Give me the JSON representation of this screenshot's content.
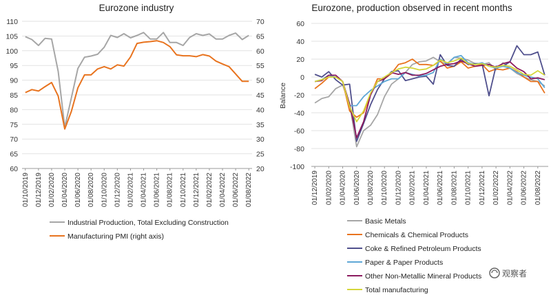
{
  "watermark": "观察者",
  "chart_data": [
    {
      "type": "line",
      "title": "Eurozone industry",
      "xlabel": "",
      "ylabel": "",
      "y_left": {
        "min": 60,
        "max": 110,
        "step": 5
      },
      "y_right": {
        "min": 20,
        "max": 70,
        "step": 5
      },
      "x_tick_labels": [
        "01/10/2019",
        "01/12/2019",
        "01/02/2020",
        "01/04/2020",
        "01/06/2020",
        "01/08/2020",
        "01/10/2020",
        "01/12/2020",
        "01/02/2021",
        "01/04/2021",
        "01/06/2021",
        "01/08/2021",
        "01/10/2021",
        "01/12/2021",
        "01/02/2022",
        "01/04/2022",
        "01/06/2022",
        "01/08/2022"
      ],
      "n_points": 35,
      "series": [
        {
          "name": "Industrial Production, Total Excluding Construction",
          "color": "#a6a6a6",
          "axis": "left",
          "values": [
            104.8,
            103.8,
            101.8,
            104.2,
            104.0,
            93.0,
            74.0,
            84.0,
            94.0,
            97.8,
            98.2,
            98.8,
            101.2,
            105.2,
            104.5,
            105.8,
            104.4,
            105.2,
            106.2,
            104.0,
            104.0,
            106.2,
            102.8,
            102.8,
            101.8,
            104.5,
            105.8,
            105.2,
            105.7,
            104.0,
            104.0,
            105.2,
            106.0,
            103.8,
            105.2
          ]
        },
        {
          "name": "Manufacturing PMI (right axis)",
          "color": "#e8731e",
          "axis": "right",
          "values": [
            45.8,
            46.8,
            46.3,
            47.8,
            49.2,
            44.6,
            33.4,
            39.4,
            47.4,
            51.8,
            51.8,
            53.8,
            54.6,
            53.8,
            55.2,
            54.8,
            57.9,
            62.5,
            62.9,
            63.1,
            63.4,
            62.8,
            61.4,
            58.6,
            58.3,
            58.3,
            58.0,
            58.7,
            58.2,
            56.5,
            55.5,
            54.6,
            52.1,
            49.6,
            49.6
          ]
        }
      ],
      "legend_position": "bottom"
    },
    {
      "type": "line",
      "title": "Eurozone, production observed in recent months",
      "xlabel": "",
      "ylabel": "Balance",
      "ylim": [
        -100,
        60
      ],
      "y_step": 20,
      "x_tick_labels": [
        "01/12/2019",
        "01/02/2020",
        "01/04/2020",
        "01/06/2020",
        "01/08/2020",
        "01/10/2020",
        "01/12/2020",
        "01/02/2021",
        "01/04/2021",
        "01/06/2021",
        "01/08/2021",
        "01/10/2021",
        "01/12/2021",
        "01/02/2022",
        "01/04/2022",
        "01/06/2022",
        "01/08/2022"
      ],
      "n_points": 34,
      "series": [
        {
          "name": "Basic Metals",
          "color": "#a6a6a6",
          "values": [
            -29,
            -24,
            -22,
            -13,
            -9,
            -30,
            -78,
            -60,
            -54,
            -42,
            -22,
            -8,
            -2,
            5,
            14,
            17,
            18,
            22,
            17,
            14,
            22,
            21,
            19,
            15,
            14,
            16,
            8,
            16,
            10,
            4,
            0,
            -3,
            -5,
            -10
          ]
        },
        {
          "name": "Chemicals & Chemical Products",
          "color": "#e8731e",
          "values": [
            -13,
            -7,
            0,
            0,
            -5,
            -38,
            -45,
            -40,
            -20,
            -2,
            -2,
            4,
            14,
            16,
            20,
            14,
            14,
            13,
            18,
            10,
            12,
            17,
            10,
            12,
            14,
            6,
            9,
            8,
            10,
            6,
            0,
            -5,
            -5,
            -18
          ]
        },
        {
          "name": "Coke & Refined Petroleum Products",
          "color": "#4f4f8c",
          "values": [
            3,
            0,
            6,
            -3,
            -9,
            -8,
            -72,
            -52,
            -31,
            -14,
            -2,
            6,
            7,
            -4,
            -2,
            0,
            1,
            -8,
            25,
            13,
            12,
            20,
            14,
            15,
            15,
            -21,
            12,
            12,
            17,
            35,
            25,
            25,
            28,
            2
          ]
        },
        {
          "name": "Paper & Paper Products",
          "color": "#5ea7d6",
          "values": [
            -5,
            -3,
            2,
            0,
            -5,
            -32,
            -32,
            -22,
            -15,
            -10,
            -5,
            -2,
            -2,
            5,
            3,
            1,
            2,
            5,
            20,
            15,
            22,
            24,
            16,
            14,
            16,
            12,
            10,
            12,
            10,
            5,
            2,
            0,
            -2,
            -12
          ]
        },
        {
          "name": "Other Non-Metallic Mineral Products",
          "color": "#8b1a5e",
          "values": [
            -5,
            -4,
            2,
            2,
            -5,
            -30,
            -68,
            -50,
            -20,
            -5,
            -2,
            5,
            3,
            5,
            2,
            2,
            4,
            8,
            12,
            14,
            15,
            18,
            15,
            12,
            13,
            14,
            11,
            15,
            17,
            10,
            6,
            -2,
            -1,
            -3
          ]
        },
        {
          "name": "Total manufacturing",
          "color": "#d4d63a",
          "values": [
            -5,
            -3,
            0,
            0,
            -5,
            -33,
            -50,
            -38,
            -18,
            -5,
            0,
            5,
            9,
            11,
            10,
            8,
            9,
            13,
            19,
            16,
            18,
            21,
            15,
            14,
            15,
            12,
            11,
            13,
            12,
            8,
            3,
            2,
            7,
            2
          ]
        }
      ],
      "legend_position": "bottom"
    }
  ]
}
